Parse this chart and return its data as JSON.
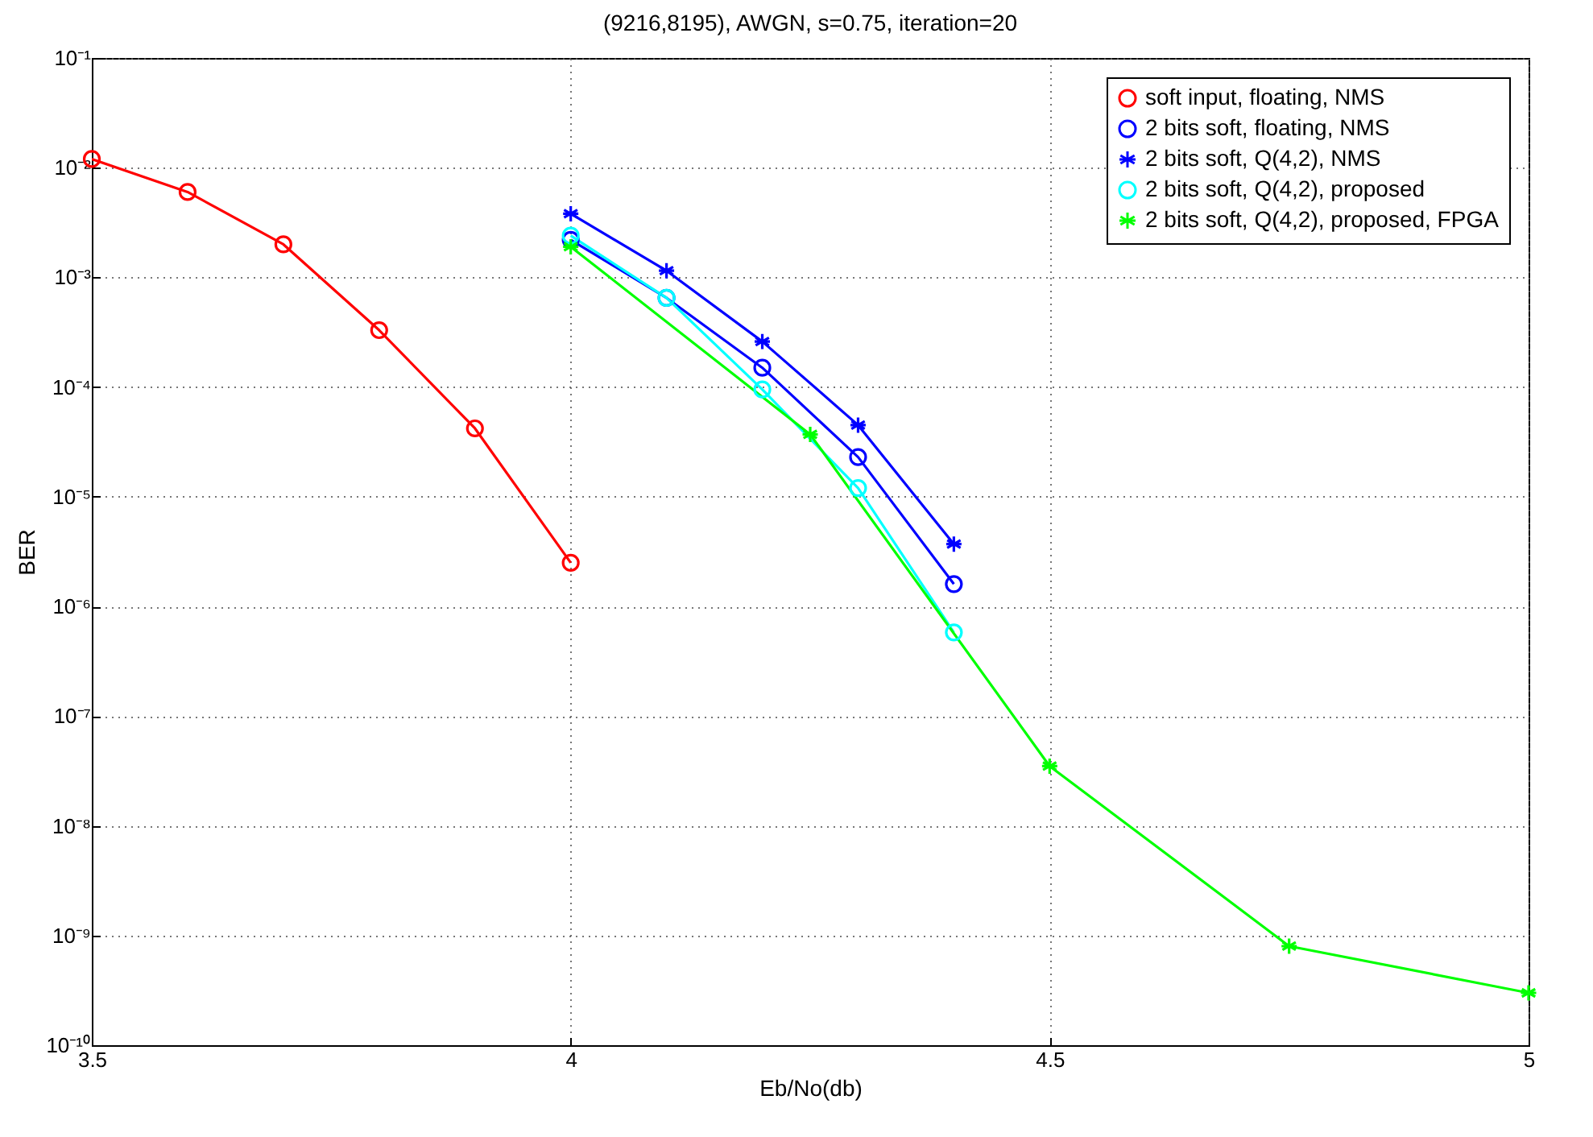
{
  "chart_data": {
    "type": "line",
    "title": "(9216,8195), AWGN, s=0.75, iteration=20",
    "xlabel": "Eb/No(db)",
    "ylabel": "BER",
    "log": "y",
    "grid": true,
    "legend": "top right",
    "line_style": "solid",
    "xlim": [
      3.5,
      5
    ],
    "xticks": [
      3.5,
      4,
      4.5,
      5
    ],
    "ylim": [
      1e-10,
      0.1
    ],
    "yticks": [
      {
        "value": 1e-10,
        "label": "10⁻¹⁰"
      },
      {
        "value": 1e-09,
        "label": "10⁻⁹"
      },
      {
        "value": 1e-08,
        "label": "10⁻⁸"
      },
      {
        "value": 1e-07,
        "label": "10⁻⁷"
      },
      {
        "value": 1e-06,
        "label": "10⁻⁶"
      },
      {
        "value": 1e-05,
        "label": "10⁻⁵"
      },
      {
        "value": 0.0001,
        "label": "10⁻⁴"
      },
      {
        "value": 0.001,
        "label": "10⁻³"
      },
      {
        "value": 0.01,
        "label": "10⁻²"
      },
      {
        "value": 0.1,
        "label": "10⁻¹"
      }
    ],
    "series": [
      {
        "name": "soft input, floating, NMS",
        "color": "#ff0000",
        "marker": "circle",
        "x": [
          3.5,
          3.6,
          3.7,
          3.8,
          3.9,
          4.0
        ],
        "values": [
          0.012,
          0.006,
          0.002,
          0.00033,
          4.2e-05,
          2.5e-06
        ]
      },
      {
        "name": "2 bits soft, floating, NMS",
        "color": "#0000ff",
        "marker": "circle",
        "x": [
          4.0,
          4.1,
          4.2,
          4.3,
          4.4
        ],
        "values": [
          0.0022,
          0.00065,
          0.00015,
          2.3e-05,
          1.6e-06
        ]
      },
      {
        "name": "2 bits soft, Q(4,2), NMS",
        "color": "#0000ff",
        "marker": "cross",
        "x": [
          4.0,
          4.1,
          4.2,
          4.3,
          4.4
        ],
        "values": [
          0.0038,
          0.00115,
          0.00026,
          4.5e-05,
          3.7e-06
        ]
      },
      {
        "name": "2 bits soft, Q(4,2), proposed",
        "color": "#00ffff",
        "marker": "circle",
        "x": [
          4.0,
          4.1,
          4.2,
          4.3,
          4.4
        ],
        "values": [
          0.0024,
          0.00065,
          9.5e-05,
          1.2e-05,
          5.8e-07
        ]
      },
      {
        "name": "2 bits soft, Q(4,2), proposed, FPGA",
        "color": "#00ff00",
        "marker": "cross",
        "x": [
          4.0,
          4.25,
          4.5,
          4.75,
          5.0
        ],
        "values": [
          0.0019,
          3.7e-05,
          3.5e-08,
          8e-10,
          3e-10
        ]
      }
    ]
  }
}
